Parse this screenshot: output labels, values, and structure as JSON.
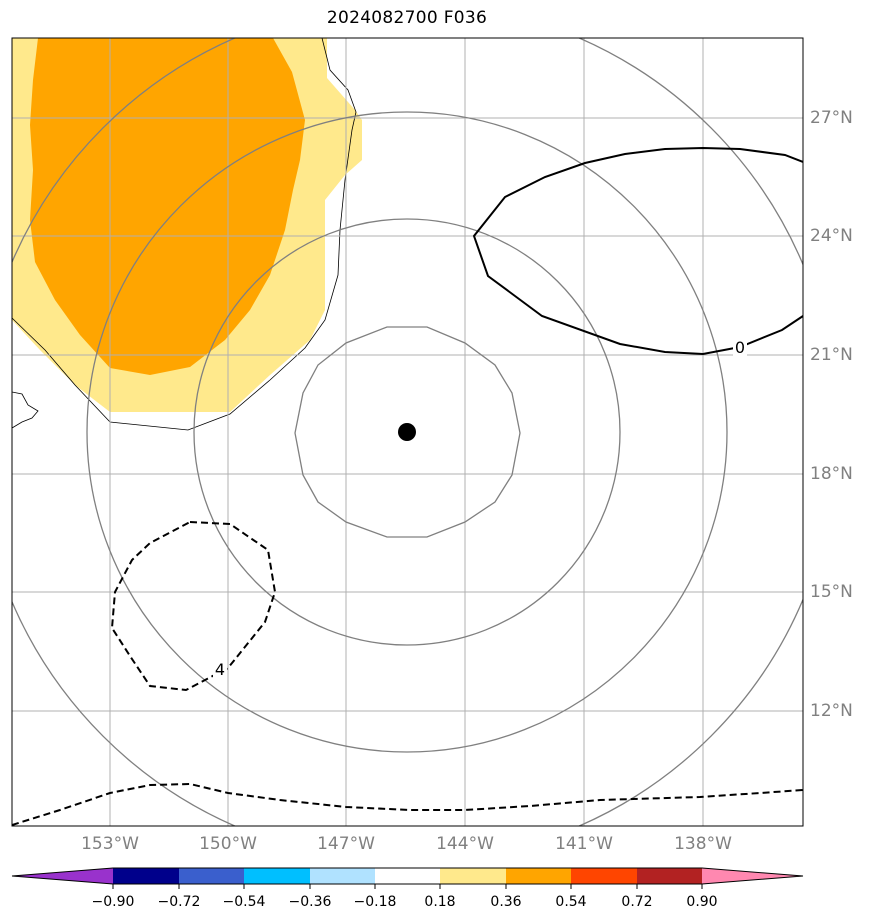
{
  "title": "2024082700 F036",
  "map": {
    "lon_labels": [
      "153°W",
      "150°W",
      "147°W",
      "144°W",
      "141°W",
      "138°W"
    ],
    "lat_labels": [
      "27°N",
      "24°N",
      "21°N",
      "18°N",
      "15°N",
      "12°N"
    ],
    "contour_labels": [
      {
        "text": "0",
        "style": "solid"
      },
      {
        "text": "4",
        "style": "dashed"
      }
    ],
    "center_marker": "storm-center-dot",
    "shading_colors": {
      "0.18-0.36": "#ffe98c",
      "0.36-0.54": "#ffa500"
    },
    "range_ring_color": "#808080",
    "gridline_color": "#b0b0b0"
  },
  "colorbar": {
    "ticks": [
      "−0.90",
      "−0.72",
      "−0.54",
      "−0.36",
      "−0.18",
      "0.18",
      "0.36",
      "0.54",
      "0.72",
      "0.90"
    ],
    "colors": [
      "#9932cc",
      "#00008b",
      "#3a5fcd",
      "#00bfff",
      "#b0e2ff",
      "#ffffff",
      "#ffe98c",
      "#ffa500",
      "#ff4500",
      "#b22222",
      "#ff88b0"
    ],
    "extend": "both"
  }
}
